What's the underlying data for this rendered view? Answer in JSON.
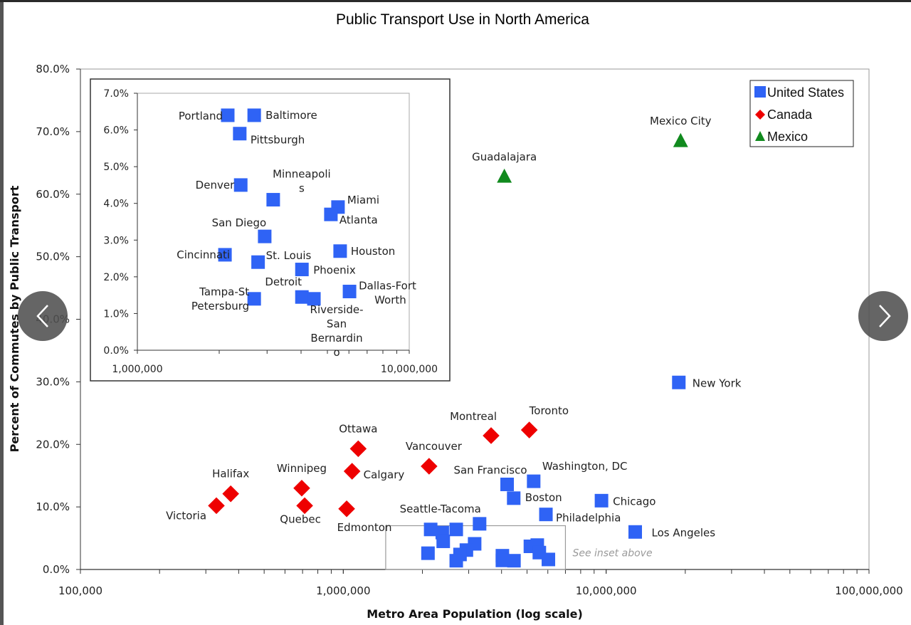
{
  "colors": {
    "us": "#2f63f5",
    "canada": "#ee0000",
    "mexico": "#118a1e",
    "axis": "#666666",
    "inset_border": "#9a9a9a"
  },
  "navigation": {
    "prev_icon": "chevron-left-icon",
    "next_icon": "chevron-right-icon"
  },
  "chart_data": {
    "type": "scatter",
    "title": "Public Transport Use in North America",
    "xlabel": "Metro Area Population (log scale)",
    "ylabel": "Percent of Commutes by Public Transport",
    "xscale": "log",
    "xlim": [
      100000,
      100000000
    ],
    "ylim": [
      0,
      80
    ],
    "x_ticks": [
      {
        "value": 100000,
        "label": "100,000"
      },
      {
        "value": 1000000,
        "label": "1,000,000"
      },
      {
        "value": 10000000,
        "label": "10,000,000"
      },
      {
        "value": 100000000,
        "label": "100,000,000"
      }
    ],
    "y_ticks": [
      {
        "value": 0,
        "label": "0.0%"
      },
      {
        "value": 10,
        "label": "10.0%"
      },
      {
        "value": 20,
        "label": "20.0%"
      },
      {
        "value": 30,
        "label": "30.0%"
      },
      {
        "value": 40,
        "label": "40.0%"
      },
      {
        "value": 50,
        "label": "50.0%"
      },
      {
        "value": 60,
        "label": "60.0%"
      },
      {
        "value": 70,
        "label": "70.0%"
      },
      {
        "value": 80,
        "label": "80.0%"
      }
    ],
    "grid": false,
    "legend": {
      "position": "top-right",
      "entries": [
        {
          "name": "United States",
          "marker": "square",
          "color": "#2f63f5"
        },
        {
          "name": "Canada",
          "marker": "diamond",
          "color": "#ee0000"
        },
        {
          "name": "Mexico",
          "marker": "triangle",
          "color": "#118a1e"
        }
      ]
    },
    "series": [
      {
        "name": "United States",
        "marker": "square",
        "points": [
          {
            "label": "New York",
            "x": 18900000,
            "y": 29.9,
            "label_pos": "right"
          },
          {
            "label": "Los Angeles",
            "x": 12900000,
            "y": 6.0,
            "label_pos": "right"
          },
          {
            "label": "Chicago",
            "x": 9600000,
            "y": 11.0,
            "label_pos": "right"
          },
          {
            "label": "Washington, DC",
            "x": 5300000,
            "y": 14.1,
            "label_pos": "above-right"
          },
          {
            "label": "San Francisco",
            "x": 4200000,
            "y": 13.6,
            "label_pos": "above-left"
          },
          {
            "label": "Boston",
            "x": 4450000,
            "y": 11.4,
            "label_pos": "right"
          },
          {
            "label": "Philadelphia",
            "x": 5900000,
            "y": 8.8,
            "label_pos": "right-below"
          },
          {
            "label": "Seattle-Tacoma",
            "x": 3300000,
            "y": 7.3,
            "label_pos": "above-left"
          },
          {
            "label": "Portland",
            "x": 2150000,
            "y": 6.4,
            "inset": true
          },
          {
            "label": "Baltimore",
            "x": 2690000,
            "y": 6.4,
            "inset": true
          },
          {
            "label": "Pittsburgh",
            "x": 2380000,
            "y": 5.9,
            "inset": true
          },
          {
            "label": "Denver",
            "x": 2400000,
            "y": 4.5,
            "inset": true
          },
          {
            "label": "Minneapolis",
            "x": 3160000,
            "y": 4.1,
            "inset": true
          },
          {
            "label": "Miami",
            "x": 5470000,
            "y": 3.9,
            "inset": true
          },
          {
            "label": "Atlanta",
            "x": 5150000,
            "y": 3.7,
            "inset": true
          },
          {
            "label": "San Diego",
            "x": 2940000,
            "y": 3.1,
            "inset": true
          },
          {
            "label": "Cincinnati",
            "x": 2100000,
            "y": 2.6,
            "inset": true
          },
          {
            "label": "St. Louis",
            "x": 2780000,
            "y": 2.4,
            "inset": true
          },
          {
            "label": "Houston",
            "x": 5570000,
            "y": 2.7,
            "inset": true
          },
          {
            "label": "Phoenix",
            "x": 4030000,
            "y": 2.2,
            "inset": true
          },
          {
            "label": "Dallas-Fort Worth",
            "x": 6030000,
            "y": 1.6,
            "inset": true
          },
          {
            "label": "Tampa-St Petersburg",
            "x": 2690000,
            "y": 1.4,
            "inset": true
          },
          {
            "label": "Detroit",
            "x": 4030000,
            "y": 1.45,
            "inset": true
          },
          {
            "label": "Riverside-San Bernardino",
            "x": 4460000,
            "y": 1.4,
            "inset": true
          }
        ]
      },
      {
        "name": "Canada",
        "marker": "diamond",
        "points": [
          {
            "label": "Toronto",
            "x": 5100000,
            "y": 22.3
          },
          {
            "label": "Montreal",
            "x": 3650000,
            "y": 21.4
          },
          {
            "label": "Vancouver",
            "x": 2120000,
            "y": 16.5
          },
          {
            "label": "Ottawa",
            "x": 1140000,
            "y": 19.3
          },
          {
            "label": "Calgary",
            "x": 1080000,
            "y": 15.7
          },
          {
            "label": "Edmonton",
            "x": 1030000,
            "y": 9.7
          },
          {
            "label": "Winnipeg",
            "x": 695000,
            "y": 13.0
          },
          {
            "label": "Quebec",
            "x": 713000,
            "y": 10.2
          },
          {
            "label": "Halifax",
            "x": 373000,
            "y": 12.1
          },
          {
            "label": "Victoria",
            "x": 329000,
            "y": 10.2
          }
        ]
      },
      {
        "name": "Mexico",
        "marker": "triangle",
        "points": [
          {
            "label": "Mexico City",
            "x": 19200000,
            "y": 68.6
          },
          {
            "label": "Guadalajara",
            "x": 4100000,
            "y": 62.9
          }
        ]
      }
    ],
    "inset": {
      "xscale": "log",
      "xlim": [
        1000000,
        10000000
      ],
      "ylim": [
        0,
        7
      ],
      "x_ticks": [
        {
          "value": 1000000,
          "label": "1,000,000"
        },
        {
          "value": 10000000,
          "label": "10,000,000"
        }
      ],
      "y_ticks": [
        {
          "value": 0,
          "label": "0.0%"
        },
        {
          "value": 1,
          "label": "1.0%"
        },
        {
          "value": 2,
          "label": "2.0%"
        },
        {
          "value": 3,
          "label": "3.0%"
        },
        {
          "value": 4,
          "label": "4.0%"
        },
        {
          "value": 5,
          "label": "5.0%"
        },
        {
          "value": 6,
          "label": "6.0%"
        },
        {
          "value": 7,
          "label": "7.0%"
        }
      ],
      "annotation": "See inset above",
      "zoom_region": {
        "x": [
          1450000,
          7000000
        ],
        "y": [
          0,
          7
        ]
      }
    }
  }
}
